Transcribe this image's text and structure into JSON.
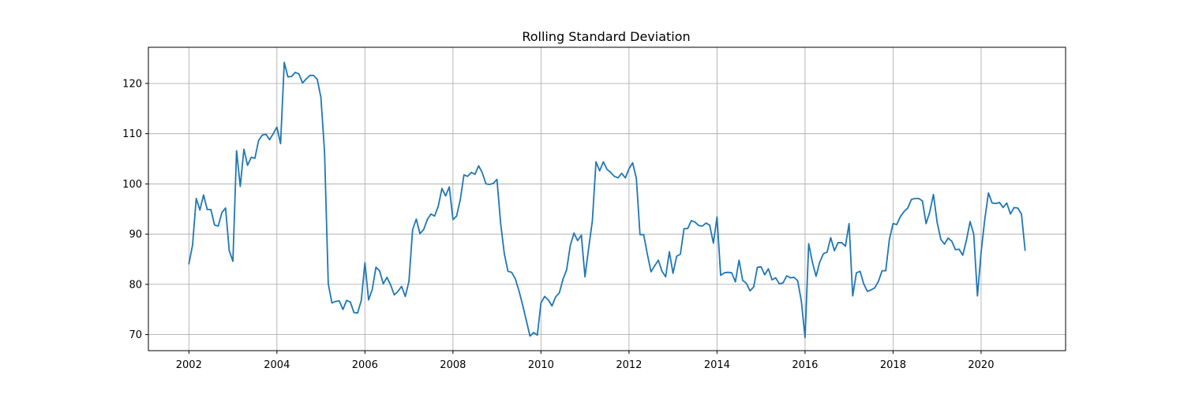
{
  "chart_data": {
    "type": "line",
    "title": "Rolling Standard Deviation",
    "xlabel": "",
    "ylabel": "",
    "xlim": [
      2001.08,
      2021.92
    ],
    "ylim": [
      66.8,
      127.2
    ],
    "x_ticks": [
      2002,
      2004,
      2006,
      2008,
      2010,
      2012,
      2014,
      2016,
      2018,
      2020
    ],
    "y_ticks": [
      70,
      80,
      90,
      100,
      110,
      120
    ],
    "grid": true,
    "colors": {
      "series": "#1f77b4",
      "grid": "#b0b0b0",
      "axis": "#000000"
    },
    "series": [
      {
        "x": [
          2002.0,
          2002.083,
          2002.167,
          2002.25,
          2002.333,
          2002.417,
          2002.5,
          2002.583,
          2002.667,
          2002.75,
          2002.833,
          2002.917,
          2003.0,
          2003.083,
          2003.167,
          2003.25,
          2003.333,
          2003.417,
          2003.5,
          2003.583,
          2003.667,
          2003.75,
          2003.833,
          2003.917,
          2004.0,
          2004.083,
          2004.167,
          2004.25,
          2004.333,
          2004.417,
          2004.5,
          2004.583,
          2004.667,
          2004.75,
          2004.833,
          2004.917,
          2005.0,
          2005.083,
          2005.167,
          2005.25,
          2005.333,
          2005.417,
          2005.5,
          2005.583,
          2005.667,
          2005.75,
          2005.833,
          2005.917,
          2006.0,
          2006.083,
          2006.167,
          2006.25,
          2006.333,
          2006.417,
          2006.5,
          2006.583,
          2006.667,
          2006.75,
          2006.833,
          2006.917,
          2007.0,
          2007.083,
          2007.167,
          2007.25,
          2007.333,
          2007.417,
          2007.5,
          2007.583,
          2007.667,
          2007.75,
          2007.833,
          2007.917,
          2008.0,
          2008.083,
          2008.167,
          2008.25,
          2008.333,
          2008.417,
          2008.5,
          2008.583,
          2008.667,
          2008.75,
          2008.833,
          2008.917,
          2009.0,
          2009.083,
          2009.167,
          2009.25,
          2009.333,
          2009.417,
          2009.5,
          2009.583,
          2009.667,
          2009.75,
          2009.833,
          2009.917,
          2010.0,
          2010.083,
          2010.167,
          2010.25,
          2010.333,
          2010.417,
          2010.5,
          2010.583,
          2010.667,
          2010.75,
          2010.833,
          2010.917,
          2011.0,
          2011.083,
          2011.167,
          2011.25,
          2011.333,
          2011.417,
          2011.5,
          2011.583,
          2011.667,
          2011.75,
          2011.833,
          2011.917,
          2012.0,
          2012.083,
          2012.167,
          2012.25,
          2012.333,
          2012.417,
          2012.5,
          2012.583,
          2012.667,
          2012.75,
          2012.833,
          2012.917,
          2013.0,
          2013.083,
          2013.167,
          2013.25,
          2013.333,
          2013.417,
          2013.5,
          2013.583,
          2013.667,
          2013.75,
          2013.833,
          2013.917,
          2014.0,
          2014.083,
          2014.167,
          2014.25,
          2014.333,
          2014.417,
          2014.5,
          2014.583,
          2014.667,
          2014.75,
          2014.833,
          2014.917,
          2015.0,
          2015.083,
          2015.167,
          2015.25,
          2015.333,
          2015.417,
          2015.5,
          2015.583,
          2015.667,
          2015.75,
          2015.833,
          2015.917,
          2016.0,
          2016.083,
          2016.167,
          2016.25,
          2016.333,
          2016.417,
          2016.5,
          2016.583,
          2016.667,
          2016.75,
          2016.833,
          2016.917,
          2017.0,
          2017.083,
          2017.167,
          2017.25,
          2017.333,
          2017.417,
          2017.5,
          2017.583,
          2017.667,
          2017.75,
          2017.833,
          2017.917,
          2018.0,
          2018.083,
          2018.167,
          2018.25,
          2018.333,
          2018.417,
          2018.5,
          2018.583,
          2018.667,
          2018.75,
          2018.833,
          2018.917,
          2019.0,
          2019.083,
          2019.167,
          2019.25,
          2019.333,
          2019.417,
          2019.5,
          2019.583,
          2019.667,
          2019.75,
          2019.833,
          2019.917,
          2020.0,
          2020.083,
          2020.167,
          2020.25,
          2020.333,
          2020.417,
          2020.5,
          2020.583,
          2020.667,
          2020.75,
          2020.833,
          2020.917,
          2021.0
        ],
        "y": [
          84.1,
          87.8,
          97.1,
          94.8,
          97.8,
          94.9,
          94.9,
          91.8,
          91.6,
          94.3,
          95.2,
          86.7,
          84.6,
          106.6,
          99.5,
          106.9,
          103.7,
          105.3,
          105.1,
          108.6,
          109.7,
          109.9,
          108.8,
          110.0,
          111.3,
          108.0,
          124.2,
          121.3,
          121.4,
          122.2,
          121.9,
          120.1,
          120.9,
          121.6,
          121.6,
          120.8,
          117.2,
          106.2,
          80.1,
          76.3,
          76.6,
          76.7,
          75.0,
          76.8,
          76.5,
          74.4,
          74.3,
          76.8,
          84.3,
          76.9,
          79.0,
          83.4,
          82.7,
          80.1,
          81.4,
          79.9,
          77.9,
          78.6,
          79.6,
          77.6,
          80.6,
          90.9,
          93.0,
          90.1,
          90.9,
          92.9,
          94.0,
          93.6,
          95.6,
          99.1,
          97.6,
          99.4,
          92.9,
          93.6,
          96.9,
          101.8,
          101.5,
          102.3,
          101.9,
          103.6,
          102.2,
          100.0,
          99.9,
          100.1,
          100.9,
          92.2,
          86.1,
          82.6,
          82.4,
          81.1,
          78.7,
          75.9,
          72.8,
          69.7,
          70.4,
          69.9,
          76.3,
          77.6,
          76.9,
          75.7,
          77.5,
          78.3,
          81.0,
          82.9,
          87.8,
          90.2,
          88.7,
          89.8,
          81.5,
          87.2,
          92.6,
          104.4,
          102.6,
          104.4,
          102.9,
          102.3,
          101.5,
          101.2,
          102.1,
          101.2,
          103.0,
          104.2,
          101.1,
          89.9,
          89.9,
          86.0,
          82.5,
          83.7,
          84.8,
          82.6,
          81.5,
          86.5,
          82.2,
          85.6,
          86.0,
          91.1,
          91.1,
          92.7,
          92.4,
          91.7,
          91.6,
          92.2,
          91.8,
          88.2,
          93.4,
          81.8,
          82.3,
          82.4,
          82.3,
          80.5,
          84.8,
          80.8,
          80.2,
          78.7,
          79.5,
          83.4,
          83.5,
          81.9,
          83.1,
          80.9,
          81.3,
          80.1,
          80.3,
          81.7,
          81.3,
          81.4,
          80.7,
          76.6,
          69.4,
          88.1,
          84.4,
          81.6,
          84.4,
          86.1,
          86.4,
          89.3,
          86.7,
          88.3,
          88.3,
          87.6,
          92.1,
          77.7,
          82.3,
          82.6,
          80.1,
          78.6,
          78.9,
          79.3,
          80.6,
          82.7,
          82.7,
          89.0,
          92.1,
          91.9,
          93.5,
          94.5,
          95.2,
          96.9,
          97.1,
          97.1,
          96.6,
          92.1,
          94.4,
          97.9,
          92.4,
          89.0,
          88.0,
          89.2,
          88.6,
          86.9,
          87.0,
          85.8,
          88.8,
          92.5,
          90.0,
          77.7,
          86.4,
          92.9,
          98.2,
          96.2,
          96.1,
          96.3,
          95.3,
          96.2,
          94.0,
          95.3,
          95.2,
          94.0,
          86.8
        ]
      }
    ]
  }
}
